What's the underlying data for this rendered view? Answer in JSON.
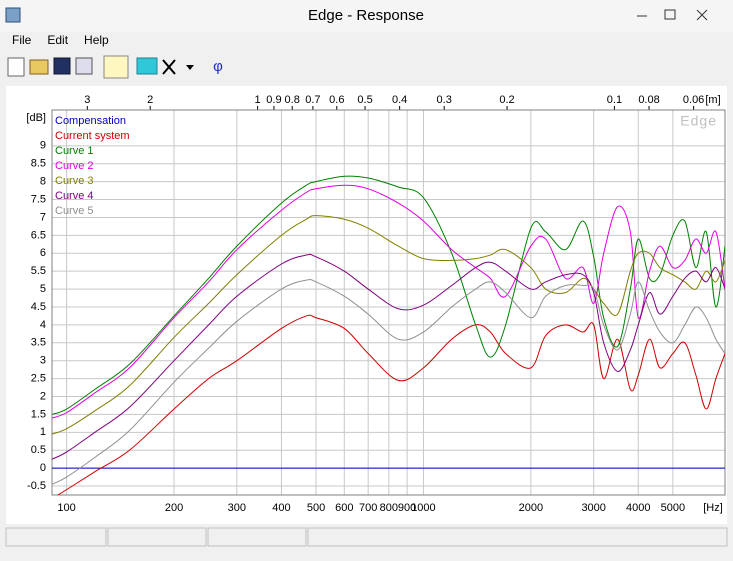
{
  "window": {
    "title": "Edge - Response"
  },
  "menu": {
    "items": [
      "File",
      "Edit",
      "Help"
    ]
  },
  "chart_data": {
    "type": "line",
    "x": [
      91,
      100,
      120,
      150,
      200,
      250,
      300,
      400,
      470,
      500,
      600,
      700,
      850,
      1000,
      1200,
      1400,
      1540,
      1700,
      2000,
      2200,
      2500,
      2800,
      3000,
      3200,
      3500,
      3800,
      4000,
      4300,
      4600,
      5000,
      5400,
      5800,
      6200,
      6600,
      7000
    ],
    "xlim": [
      91,
      7000
    ],
    "ylim": [
      -0.75,
      10
    ],
    "log_x": true,
    "grid": true,
    "legend": "top-left",
    "watermark": "Edge",
    "y_unit": "[dB]",
    "x_unit": "[Hz]",
    "top_x_unit": "[m]",
    "xticks": [
      100,
      200,
      300,
      400,
      500,
      600,
      700,
      800,
      900,
      1000,
      2000,
      3000,
      4000,
      5000
    ],
    "top_xticks": [
      {
        "value": 114.3,
        "label": "3"
      },
      {
        "value": 171.5,
        "label": "2"
      },
      {
        "value": 343,
        "label": "1"
      },
      {
        "value": 381.1,
        "label": "0.9"
      },
      {
        "value": 428.75,
        "label": "0.8"
      },
      {
        "value": 490,
        "label": "0.7"
      },
      {
        "value": 571.7,
        "label": "0.6"
      },
      {
        "value": 686,
        "label": "0.5"
      },
      {
        "value": 857.5,
        "label": "0.4"
      },
      {
        "value": 1143.3,
        "label": "0.3"
      },
      {
        "value": 1715,
        "label": "0.2"
      },
      {
        "value": 3430,
        "label": "0.1"
      },
      {
        "value": 4287.5,
        "label": "0.08"
      },
      {
        "value": 5716.7,
        "label": "0.06"
      }
    ],
    "yticks": [
      -0.5,
      0,
      0.5,
      1,
      1.5,
      2,
      2.5,
      3,
      3.5,
      4,
      4.5,
      5,
      5.5,
      6,
      6.5,
      7,
      7.5,
      8,
      8.5,
      9
    ],
    "series": [
      {
        "name": "Compensation",
        "color": "#0000c0",
        "values": [
          0,
          0,
          0,
          0,
          0,
          0,
          0,
          0,
          0,
          0,
          0,
          0,
          0,
          0,
          0,
          0,
          0,
          0,
          0,
          0,
          0,
          0,
          0,
          0,
          0,
          0,
          0,
          0,
          0,
          0,
          0,
          0,
          0,
          0,
          0
        ]
      },
      {
        "name": "Current system",
        "color": "#d00000",
        "values": [
          -0.85,
          -0.6,
          -0.1,
          0.5,
          1.65,
          2.5,
          3.0,
          3.9,
          4.25,
          4.2,
          3.9,
          3.2,
          2.45,
          2.8,
          3.6,
          4.0,
          3.8,
          3.2,
          2.8,
          3.7,
          4.0,
          3.8,
          4.0,
          2.5,
          3.6,
          2.2,
          2.6,
          3.6,
          2.8,
          3.2,
          3.5,
          2.6,
          1.65,
          2.5,
          3.2
        ]
      },
      {
        "name": "Curve 1",
        "color": "#008000",
        "values": [
          1.5,
          1.65,
          2.2,
          2.9,
          4.25,
          5.3,
          6.2,
          7.4,
          7.9,
          8.0,
          8.15,
          8.1,
          7.85,
          7.55,
          6.0,
          4.0,
          3.1,
          4.0,
          6.7,
          6.6,
          6.1,
          6.9,
          5.9,
          4.2,
          3.4,
          5.0,
          6.4,
          5.3,
          5.4,
          6.5,
          6.9,
          5.6,
          6.6,
          4.5,
          6.2
        ]
      },
      {
        "name": "Curve 2",
        "color": "#e000e0",
        "values": [
          1.4,
          1.55,
          2.1,
          2.8,
          4.2,
          5.2,
          6.1,
          7.2,
          7.7,
          7.8,
          7.9,
          7.8,
          7.4,
          6.9,
          6.1,
          5.6,
          5.3,
          4.8,
          6.2,
          6.4,
          5.3,
          5.6,
          4.6,
          6.0,
          7.3,
          6.6,
          4.2,
          5.5,
          6.2,
          5.6,
          5.8,
          6.4,
          6.0,
          6.6,
          5.0
        ]
      },
      {
        "name": "Curve 3",
        "color": "#808000",
        "values": [
          0.95,
          1.1,
          1.6,
          2.3,
          3.65,
          4.6,
          5.4,
          6.5,
          6.95,
          7.05,
          6.95,
          6.7,
          6.2,
          5.85,
          5.8,
          5.85,
          5.95,
          6.1,
          5.6,
          5.0,
          4.9,
          5.3,
          5.0,
          4.6,
          4.3,
          5.5,
          6.0,
          6.0,
          5.6,
          5.4,
          5.2,
          5.0,
          5.5,
          5.2,
          5.8
        ]
      },
      {
        "name": "Curve 4",
        "color": "#800080",
        "values": [
          0.25,
          0.45,
          1.0,
          1.7,
          3.0,
          4.0,
          4.8,
          5.7,
          5.95,
          5.9,
          5.5,
          5.0,
          4.45,
          4.55,
          5.1,
          5.6,
          5.75,
          5.5,
          5.0,
          5.2,
          5.4,
          5.4,
          4.9,
          3.5,
          2.7,
          3.3,
          4.0,
          4.9,
          4.3,
          4.8,
          5.3,
          5.5,
          5.2,
          5.6,
          5.0
        ]
      },
      {
        "name": "Curve 5",
        "color": "#909090",
        "values": [
          -0.45,
          -0.25,
          0.3,
          1.05,
          2.4,
          3.35,
          4.1,
          5.0,
          5.25,
          5.2,
          4.8,
          4.3,
          3.6,
          3.8,
          4.5,
          5.0,
          5.2,
          4.9,
          4.2,
          4.8,
          5.1,
          5.1,
          5.0,
          4.0,
          3.3,
          4.3,
          5.2,
          4.4,
          3.8,
          3.5,
          4.0,
          4.5,
          4.2,
          3.6,
          3.2
        ]
      }
    ]
  }
}
